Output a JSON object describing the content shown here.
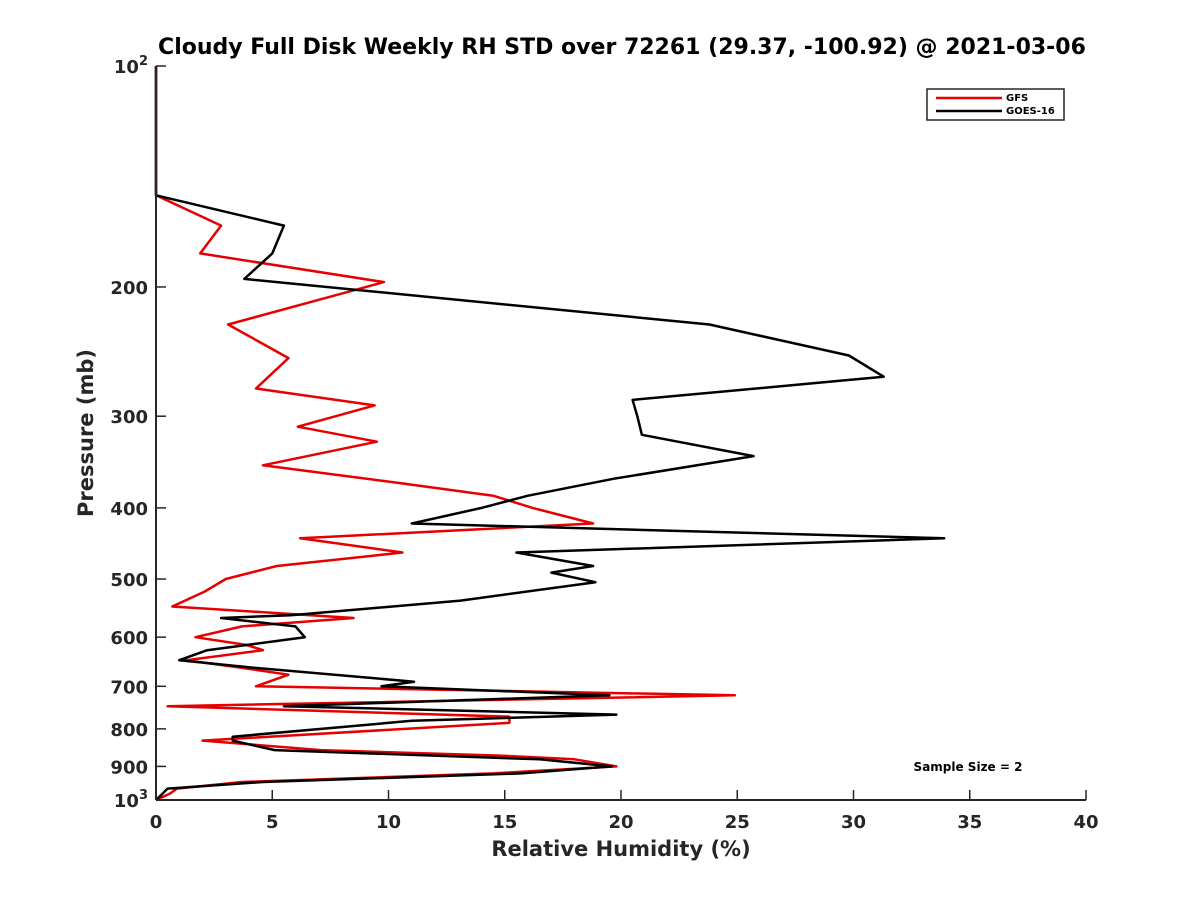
{
  "chart_data": {
    "type": "line",
    "title": "Cloudy Full Disk Weekly RH STD over 72261 (29.37, -100.92) @ 2021-03-06",
    "xlabel": "Relative Humidity (%)",
    "ylabel": "Pressure (mb)",
    "xlim": [
      0,
      40
    ],
    "ylim": [
      100,
      1000
    ],
    "y_scale": "log",
    "y_reversed": true,
    "grid": false,
    "legend_position": "top-right",
    "x_ticks": [
      "0",
      "5",
      "10",
      "15",
      "20",
      "25",
      "30",
      "35",
      "40"
    ],
    "y_ticks": [
      {
        "value": 100,
        "base": "10",
        "exp": "2"
      },
      {
        "value": 200,
        "label": "200"
      },
      {
        "value": 300,
        "label": "300"
      },
      {
        "value": 400,
        "label": "400"
      },
      {
        "value": 500,
        "label": "500"
      },
      {
        "value": 600,
        "label": "600"
      },
      {
        "value": 700,
        "label": "700"
      },
      {
        "value": 800,
        "label": "800"
      },
      {
        "value": 900,
        "label": "900"
      },
      {
        "value": 1000,
        "base": "10",
        "exp": "3"
      }
    ],
    "annotation": "Sample Size = 2",
    "series": [
      {
        "name": "GFS",
        "color": "#e60000",
        "points": [
          [
            0,
            100
          ],
          [
            0,
            125
          ],
          [
            0,
            150
          ],
          [
            2.8,
            165
          ],
          [
            1.9,
            180
          ],
          [
            9.8,
            197
          ],
          [
            3.1,
            225
          ],
          [
            5.7,
            250
          ],
          [
            4.3,
            275
          ],
          [
            9.4,
            290
          ],
          [
            6.1,
            310
          ],
          [
            9.5,
            325
          ],
          [
            4.6,
            350
          ],
          [
            10.5,
            370
          ],
          [
            14.5,
            385
          ],
          [
            16.2,
            400
          ],
          [
            18.8,
            420
          ],
          [
            6.2,
            440
          ],
          [
            10.6,
            460
          ],
          [
            5.2,
            480
          ],
          [
            3.0,
            500
          ],
          [
            2.1,
            520
          ],
          [
            0.7,
            545
          ],
          [
            8.5,
            565
          ],
          [
            3.7,
            580
          ],
          [
            1.7,
            600
          ],
          [
            3.9,
            615
          ],
          [
            4.6,
            625
          ],
          [
            1.3,
            645
          ],
          [
            3.6,
            660
          ],
          [
            5.7,
            675
          ],
          [
            4.3,
            700
          ],
          [
            24.9,
            720
          ],
          [
            0.5,
            745
          ],
          [
            15.2,
            770
          ],
          [
            15.2,
            785
          ],
          [
            2.0,
            830
          ],
          [
            7.1,
            855
          ],
          [
            14.8,
            870
          ],
          [
            18.0,
            880
          ],
          [
            19.8,
            900
          ],
          [
            14.5,
            920
          ],
          [
            3.7,
            945
          ],
          [
            0.9,
            965
          ],
          [
            0.6,
            980
          ],
          [
            0,
            1000
          ]
        ]
      },
      {
        "name": "GOES-16",
        "color": "#000000",
        "points": [
          [
            0,
            100
          ],
          [
            0,
            125
          ],
          [
            0,
            150
          ],
          [
            5.5,
            165
          ],
          [
            5.0,
            180
          ],
          [
            3.8,
            195
          ],
          [
            23.8,
            225
          ],
          [
            29.8,
            248
          ],
          [
            31.3,
            265
          ],
          [
            20.5,
            285
          ],
          [
            20.7,
            300
          ],
          [
            20.9,
            318
          ],
          [
            25.7,
            340
          ],
          [
            19.7,
            365
          ],
          [
            16.0,
            385
          ],
          [
            14.0,
            400
          ],
          [
            11.0,
            420
          ],
          [
            33.9,
            440
          ],
          [
            15.5,
            460
          ],
          [
            18.8,
            480
          ],
          [
            17.0,
            490
          ],
          [
            18.9,
            505
          ],
          [
            13.1,
            535
          ],
          [
            5.8,
            560
          ],
          [
            2.8,
            565
          ],
          [
            6.0,
            580
          ],
          [
            6.4,
            600
          ],
          [
            2.2,
            625
          ],
          [
            1.0,
            645
          ],
          [
            4.1,
            660
          ],
          [
            11.1,
            690
          ],
          [
            9.7,
            700
          ],
          [
            19.5,
            720
          ],
          [
            5.5,
            745
          ],
          [
            19.8,
            765
          ],
          [
            11.0,
            780
          ],
          [
            3.3,
            820
          ],
          [
            3.3,
            830
          ],
          [
            5.1,
            855
          ],
          [
            16.5,
            880
          ],
          [
            19.6,
            900
          ],
          [
            15.7,
            920
          ],
          [
            4.6,
            945
          ],
          [
            0.5,
            965
          ],
          [
            0,
            1000
          ]
        ]
      }
    ]
  }
}
